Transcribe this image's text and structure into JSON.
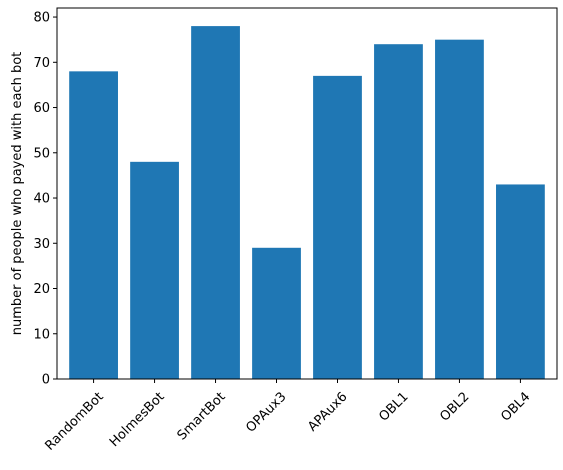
{
  "chart_data": {
    "type": "bar",
    "title": "",
    "xlabel": "",
    "ylabel": "number of people who payed with each bot",
    "categories": [
      "RandomBot",
      "HolmesBot",
      "SmartBot",
      "OPAux3",
      "APAux6",
      "OBL1",
      "OBL2",
      "OBL4"
    ],
    "values": [
      68,
      48,
      78,
      29,
      67,
      74,
      75,
      43
    ],
    "ylim": [
      0,
      82
    ],
    "yticks": [
      0,
      10,
      20,
      30,
      40,
      50,
      60,
      70,
      80
    ],
    "bar_color": "#1f77b4",
    "grid": false,
    "legend": "none",
    "x_tick_rotation": "45 degrees"
  }
}
